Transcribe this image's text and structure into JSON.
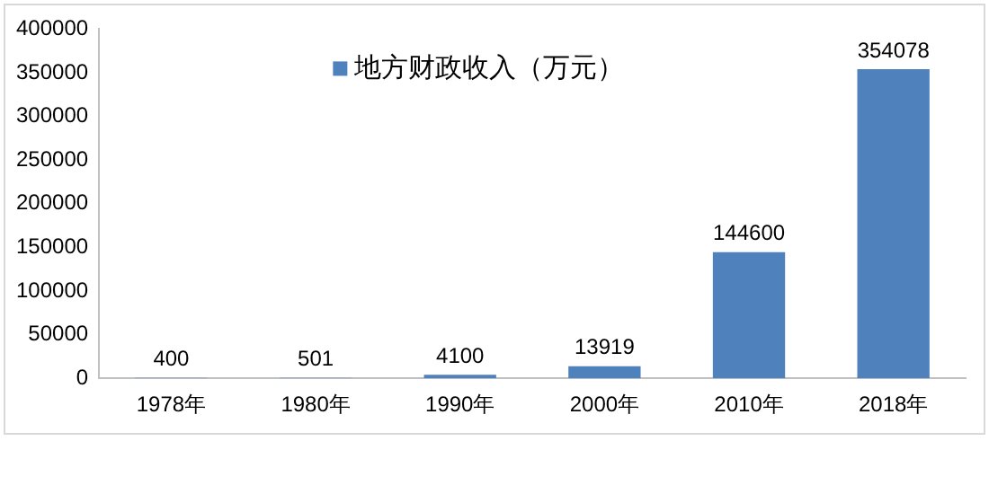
{
  "chart_data": {
    "type": "bar",
    "categories": [
      "1978年",
      "1980年",
      "1990年",
      "2000年",
      "2010年",
      "2018年"
    ],
    "series": [
      {
        "name": "地方财政收入（万元）",
        "color": "#4f81bd",
        "values": [
          400,
          501,
          4100,
          13919,
          144600,
          354078
        ]
      }
    ],
    "ylim": [
      0,
      400000
    ],
    "yticks": [
      0,
      50000,
      100000,
      150000,
      200000,
      250000,
      300000,
      350000,
      400000
    ],
    "data_labels": true,
    "grid": false,
    "legend": "top"
  }
}
